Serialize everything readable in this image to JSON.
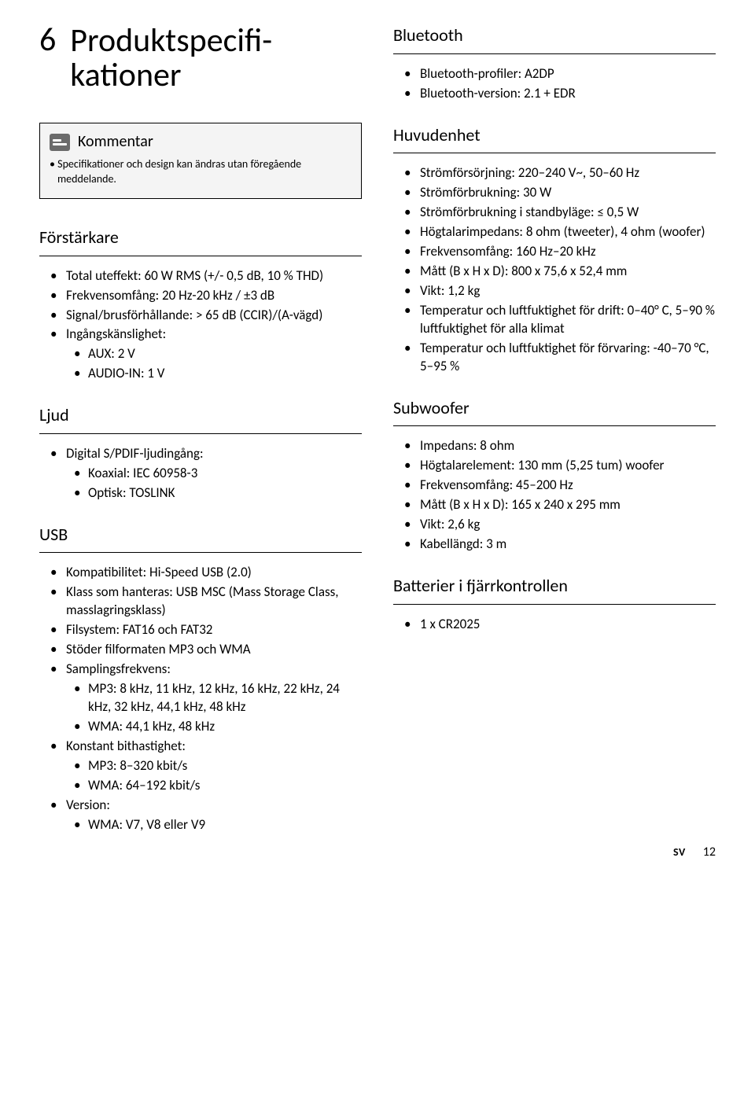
{
  "chapter_number": "6",
  "chapter_title": "Produktspecifi-kationer",
  "note": {
    "label": "Kommentar",
    "text": "Specifikationer och design kan ändras utan föregående meddelande."
  },
  "left_sections": [
    {
      "title": "Förstärkare",
      "items": [
        {
          "text": "Total uteffekt: 60 W RMS (+/- 0,5 dB, 10 % THD)"
        },
        {
          "text": "Frekvensomfång: 20 Hz-20 kHz / ±3 dB"
        },
        {
          "text": "Signal/brusförhållande: > 65 dB (CCIR)/(A-vägd)"
        },
        {
          "text": "Ingångskänslighet:",
          "sub": [
            {
              "text": "AUX: 2 V"
            },
            {
              "text": "AUDIO-IN: 1 V"
            }
          ]
        }
      ]
    },
    {
      "title": "Ljud",
      "items": [
        {
          "text": "Digital S/PDIF-ljudingång:",
          "sub": [
            {
              "text": "Koaxial: IEC 60958-3"
            },
            {
              "text": "Optisk: TOSLINK"
            }
          ]
        }
      ]
    },
    {
      "title": "USB",
      "items": [
        {
          "text": "Kompatibilitet: Hi-Speed USB (2.0)"
        },
        {
          "text": "Klass som hanteras: USB MSC (Mass Storage Class, masslagringsklass)"
        },
        {
          "text": "Filsystem: FAT16 och FAT32"
        },
        {
          "text": "Stöder filformaten MP3 och WMA"
        },
        {
          "text": "Samplingsfrekvens:",
          "sub": [
            {
              "text": "MP3: 8 kHz, 11 kHz, 12 kHz, 16 kHz, 22 kHz, 24 kHz, 32 kHz, 44,1 kHz, 48 kHz"
            },
            {
              "text": "WMA: 44,1 kHz, 48 kHz"
            }
          ]
        },
        {
          "text": "Konstant bithastighet:",
          "sub": [
            {
              "text": "MP3: 8–320 kbit/s"
            },
            {
              "text": "WMA: 64–192 kbit/s"
            }
          ]
        },
        {
          "text": "Version:",
          "sub": [
            {
              "text": "WMA: V7, V8 eller V9"
            }
          ]
        }
      ]
    }
  ],
  "right_sections": [
    {
      "title": "Bluetooth",
      "items": [
        {
          "text": "Bluetooth-profiler: A2DP"
        },
        {
          "text": "Bluetooth-version: 2.1 + EDR"
        }
      ]
    },
    {
      "title": "Huvudenhet",
      "items": [
        {
          "text": "Strömförsörjning: 220–240 V~, 50–60 Hz"
        },
        {
          "text": "Strömförbrukning: 30 W"
        },
        {
          "text": "Strömförbrukning i standbyläge: ≤ 0,5 W"
        },
        {
          "text": "Högtalarimpedans: 8 ohm (tweeter), 4 ohm (woofer)"
        },
        {
          "text": "Frekvensomfång: 160 Hz–20 kHz"
        },
        {
          "text": "Mått (B x H x D): 800 x 75,6 x 52,4 mm"
        },
        {
          "text": "Vikt: 1,2 kg"
        },
        {
          "text": "Temperatur och luftfuktighet för drift: 0–40° C, 5–90 % luftfuktighet för alla klimat"
        },
        {
          "text": "Temperatur och luftfuktighet för förvaring: -40–70 °C, 5–95 %"
        }
      ]
    },
    {
      "title": "Subwoofer",
      "items": [
        {
          "text": "Impedans: 8 ohm"
        },
        {
          "text": "Högtalarelement: 130 mm (5,25 tum) woofer"
        },
        {
          "text": "Frekvensomfång: 45–200 Hz"
        },
        {
          "text": "Mått (B x H x D): 165 x 240 x 295 mm"
        },
        {
          "text": "Vikt: 2,6 kg"
        },
        {
          "text": "Kabellängd: 3 m"
        }
      ]
    },
    {
      "title": "Batterier i fjärrkontrollen",
      "items": [
        {
          "text": "1 x CR2025"
        }
      ]
    }
  ],
  "footer": {
    "lang": "SV",
    "page": "12"
  }
}
